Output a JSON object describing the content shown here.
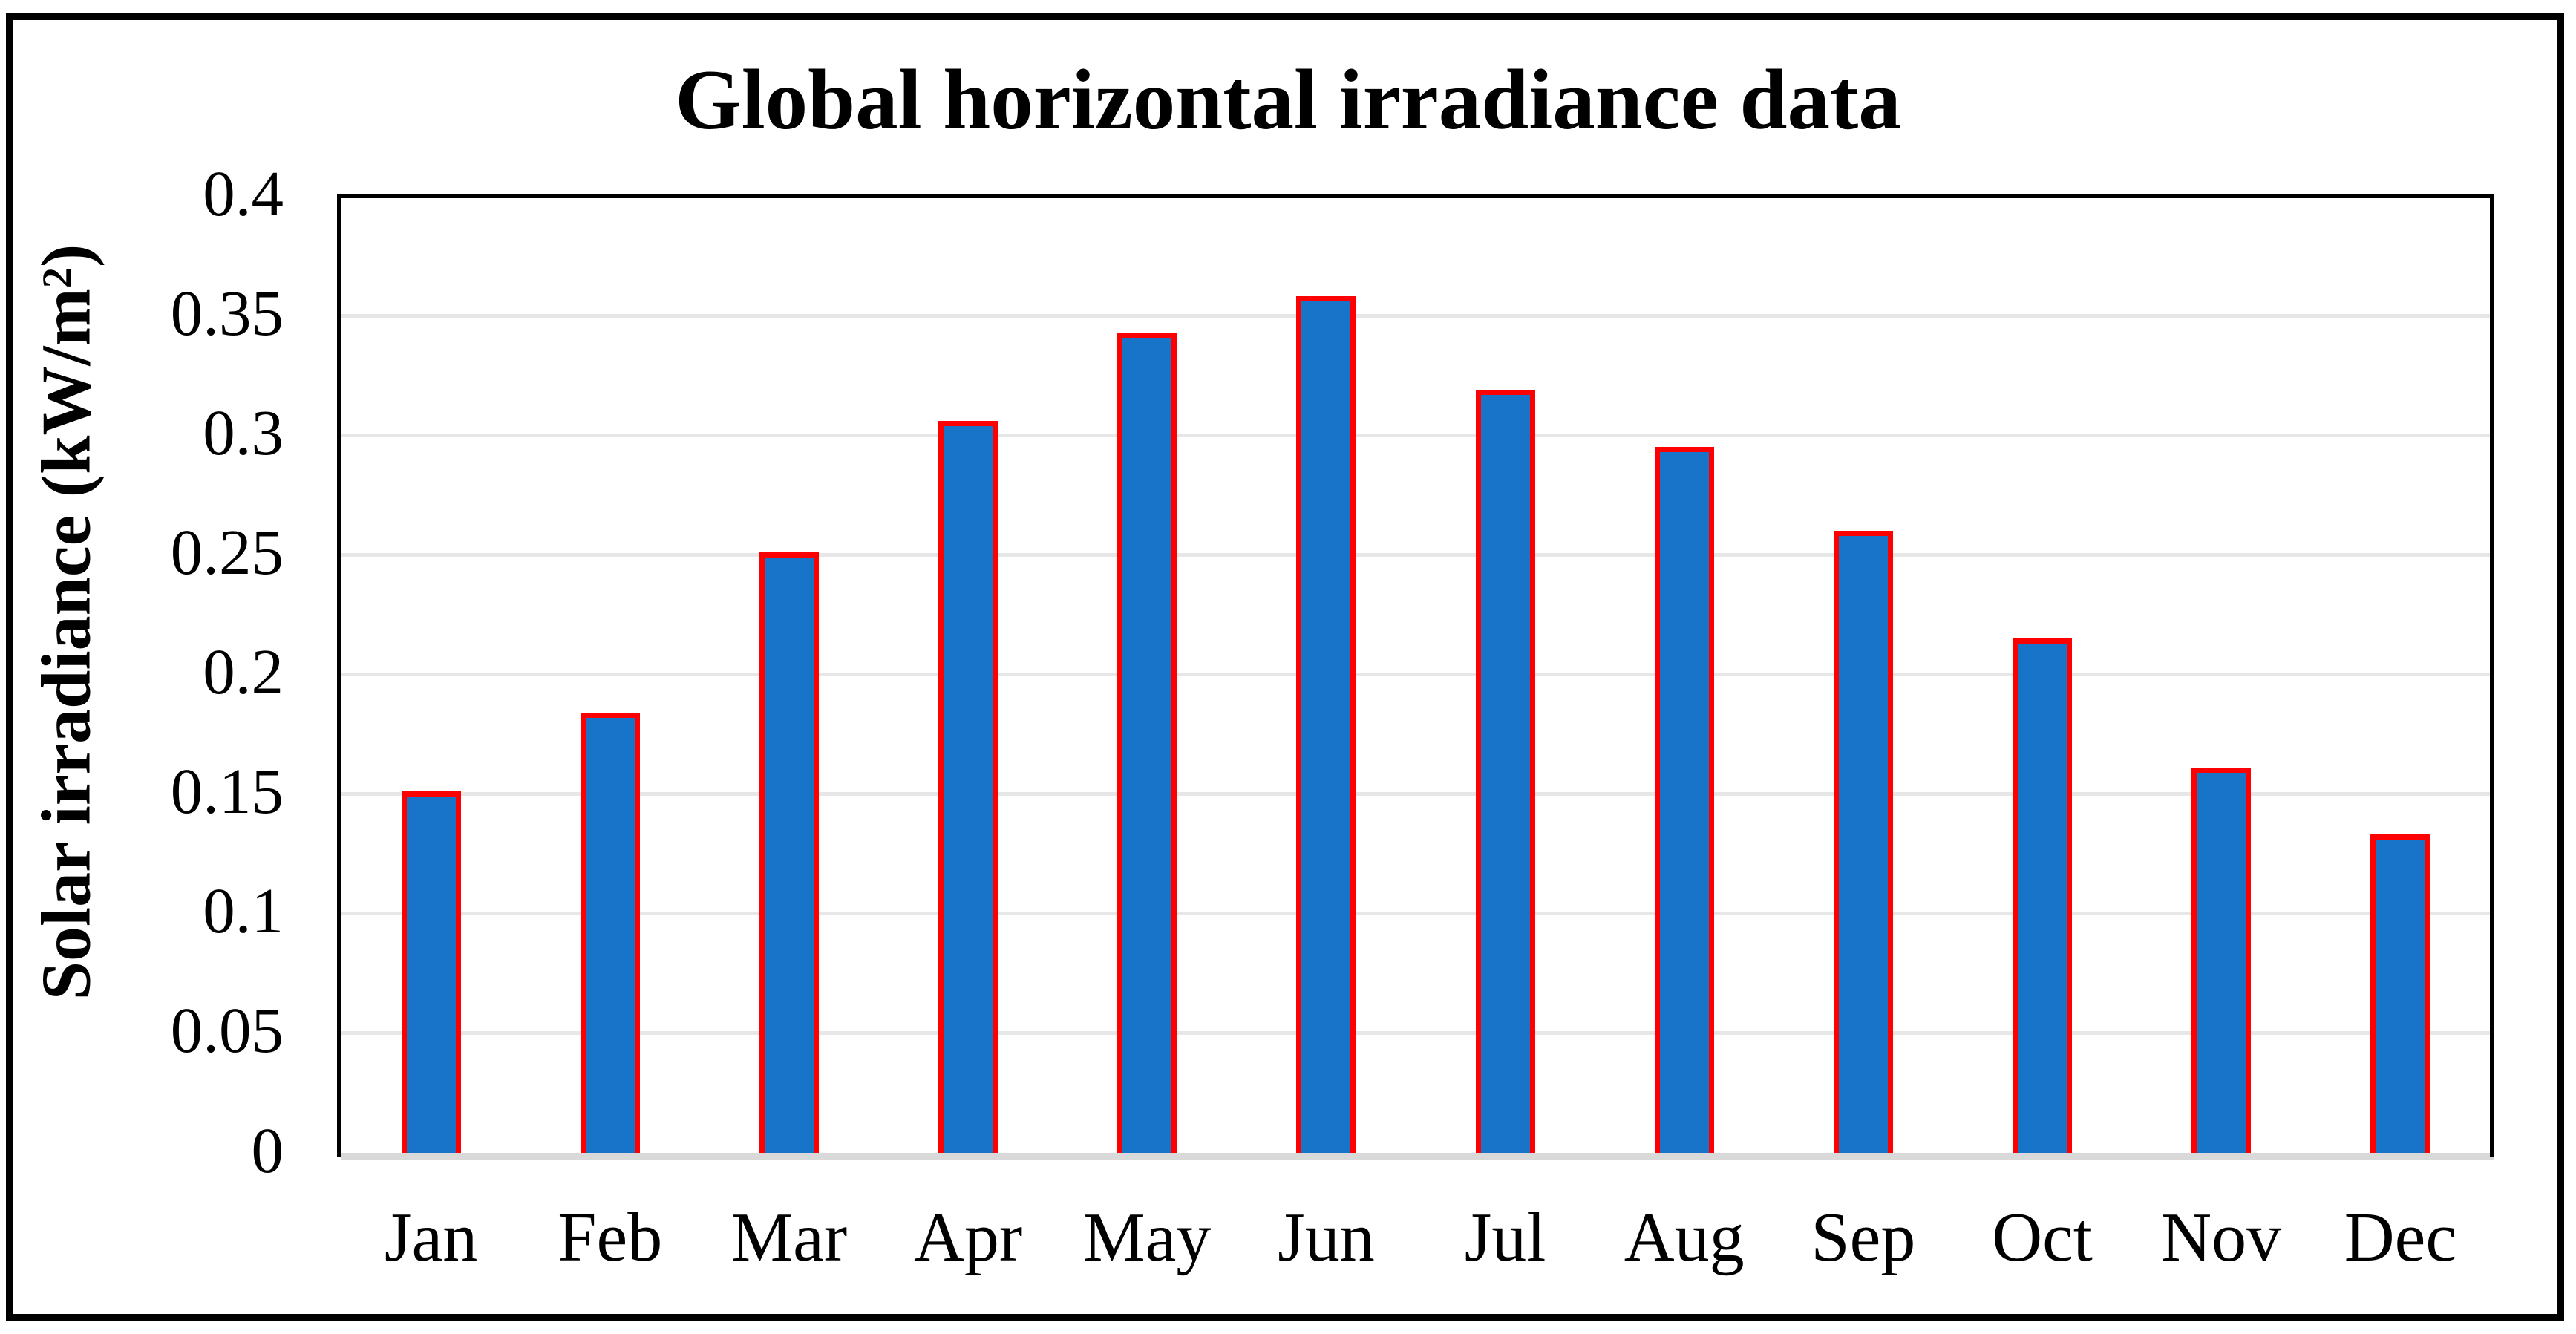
{
  "title": "Global horizontal irradiance data",
  "y_axis_title": {
    "text": "Solar irradiance (kW/m",
    "superscript": "2",
    "suffix": ")"
  },
  "colors": {
    "background": "#FFFFFF",
    "bar_fill": "#1774C9",
    "bar_border": "#FF0000",
    "gridline": "#E7E7E7",
    "baseline": "#D9D9D9",
    "axis": "#000000"
  },
  "chart_data": {
    "type": "bar",
    "title": "Global horizontal irradiance data",
    "categories": [
      "Jan",
      "Feb",
      "Mar",
      "Apr",
      "May",
      "Jun",
      "Jul",
      "Aug",
      "Sep",
      "Oct",
      "Nov",
      "Dec"
    ],
    "values": [
      0.151,
      0.184,
      0.251,
      0.306,
      0.343,
      0.358,
      0.319,
      0.295,
      0.26,
      0.215,
      0.161,
      0.133
    ],
    "xlabel": "",
    "ylabel": "Solar irradiance (kW/m²)",
    "ylim": [
      0,
      0.4
    ],
    "ytick_step": 0.05,
    "ytick_labels": [
      "0",
      "0.05",
      "0.1",
      "0.15",
      "0.2",
      "0.25",
      "0.3",
      "0.35",
      "0.4"
    ],
    "grid": true,
    "legend_position": "none"
  }
}
